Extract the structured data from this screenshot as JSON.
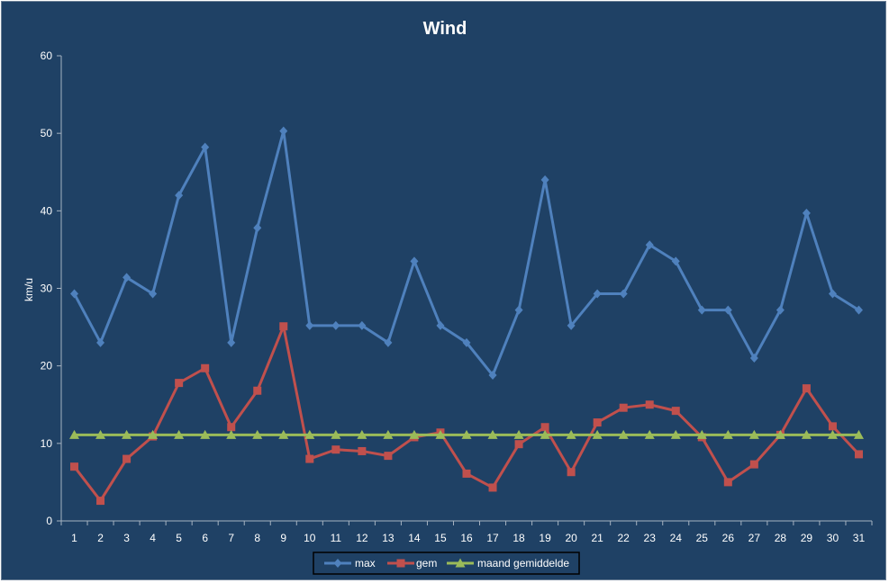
{
  "chart_data": {
    "type": "line",
    "title": "Wind",
    "xlabel": "",
    "ylabel": "km/u",
    "ylim": [
      0,
      60
    ],
    "yticks": [
      0,
      10,
      20,
      30,
      40,
      50,
      60
    ],
    "grid": false,
    "legend_position": "bottom",
    "x": [
      1,
      2,
      3,
      4,
      5,
      6,
      7,
      8,
      9,
      10,
      11,
      12,
      13,
      14,
      15,
      16,
      17,
      18,
      19,
      20,
      21,
      22,
      23,
      24,
      25,
      26,
      27,
      28,
      29,
      30,
      31
    ],
    "series": [
      {
        "name": "max",
        "color": "#4f81bd",
        "marker": "diamond",
        "values": [
          29.3,
          23,
          31.4,
          29.3,
          42,
          48.2,
          23,
          37.8,
          50.3,
          25.2,
          25.2,
          25.2,
          23,
          33.5,
          25.2,
          23,
          18.8,
          27.2,
          44,
          25.2,
          29.3,
          29.3,
          35.6,
          33.5,
          27.2,
          27.2,
          21,
          27.2,
          39.7,
          29.3,
          27.2
        ]
      },
      {
        "name": "gem",
        "color": "#c0504d",
        "marker": "square",
        "values": [
          7,
          2.6,
          8,
          10.9,
          17.8,
          19.7,
          12.1,
          16.8,
          25.1,
          8,
          9.2,
          9,
          8.4,
          10.8,
          11.4,
          6.1,
          4.3,
          9.9,
          12.1,
          6.3,
          12.7,
          14.6,
          15,
          14.2,
          10.8,
          5,
          7.3,
          11.1,
          17.1,
          12.2,
          8.6
        ]
      },
      {
        "name": "maand gemiddelde",
        "color": "#9bbb59",
        "marker": "triangle",
        "values": [
          11.1,
          11.1,
          11.1,
          11.1,
          11.1,
          11.1,
          11.1,
          11.1,
          11.1,
          11.1,
          11.1,
          11.1,
          11.1,
          11.1,
          11.1,
          11.1,
          11.1,
          11.1,
          11.1,
          11.1,
          11.1,
          11.1,
          11.1,
          11.1,
          11.1,
          11.1,
          11.1,
          11.1,
          11.1,
          11.1,
          11.1
        ]
      }
    ]
  }
}
